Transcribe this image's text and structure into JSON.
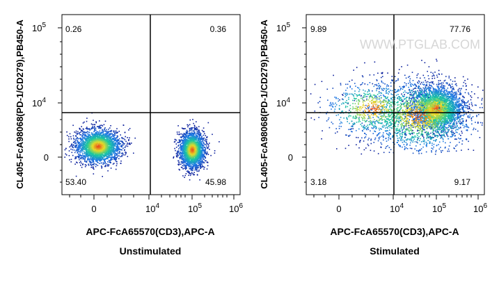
{
  "chart_data": [
    {
      "type": "scatter",
      "subtitle": "Unstimulated",
      "xlabel": "APC-FcA65570(CD3),APC-A",
      "ylabel": "CL405-FcA98068(PD-1/CD279),PB450-A",
      "x_scale": "biexponential",
      "y_scale": "biexponential",
      "xticks": [
        "0",
        "10^4",
        "10^5",
        "10^6"
      ],
      "yticks": [
        "0",
        "10^4",
        "10^5"
      ],
      "quadrant_gate": {
        "x": 10000,
        "y": 5500
      },
      "quadrant_percentages": {
        "upper_left": "0.26",
        "upper_right": "0.36",
        "lower_left": "53.40",
        "lower_right": "45.98"
      },
      "populations": [
        {
          "name": "",
          "center_x": 700,
          "center_y": 1800
        },
        {
          "name": "",
          "center_x": 100000,
          "center_y": 1800
        }
      ],
      "watermark": ""
    },
    {
      "type": "scatter",
      "subtitle": "Stimulated",
      "xlabel": "APC-FcA65570(CD3),APC-A",
      "ylabel": "CL405-FcA98068(PD-1/CD279),PB450-A",
      "x_scale": "biexponential",
      "y_scale": "biexponential",
      "xticks": [
        "0",
        "10^4",
        "10^5",
        "10^6"
      ],
      "yticks": [
        "0",
        "10^4",
        "10^5"
      ],
      "quadrant_gate": {
        "x": 10000,
        "y": 5500
      },
      "quadrant_percentages": {
        "upper_left": "9.89",
        "upper_right": "77.76",
        "lower_left": "3.18",
        "lower_right": "9.17"
      },
      "populations": [
        {
          "name": "",
          "center_x": 100000,
          "center_y": 9000
        }
      ],
      "watermark": "WWW.PTGLAB.COM"
    }
  ],
  "colors": {
    "density_low": "#0b1f9c",
    "density_mid": "#19c8a0",
    "density_high": "#e8401a",
    "gate_line": "#000000",
    "axis": "#000000",
    "watermark": "#c8c8c8"
  }
}
